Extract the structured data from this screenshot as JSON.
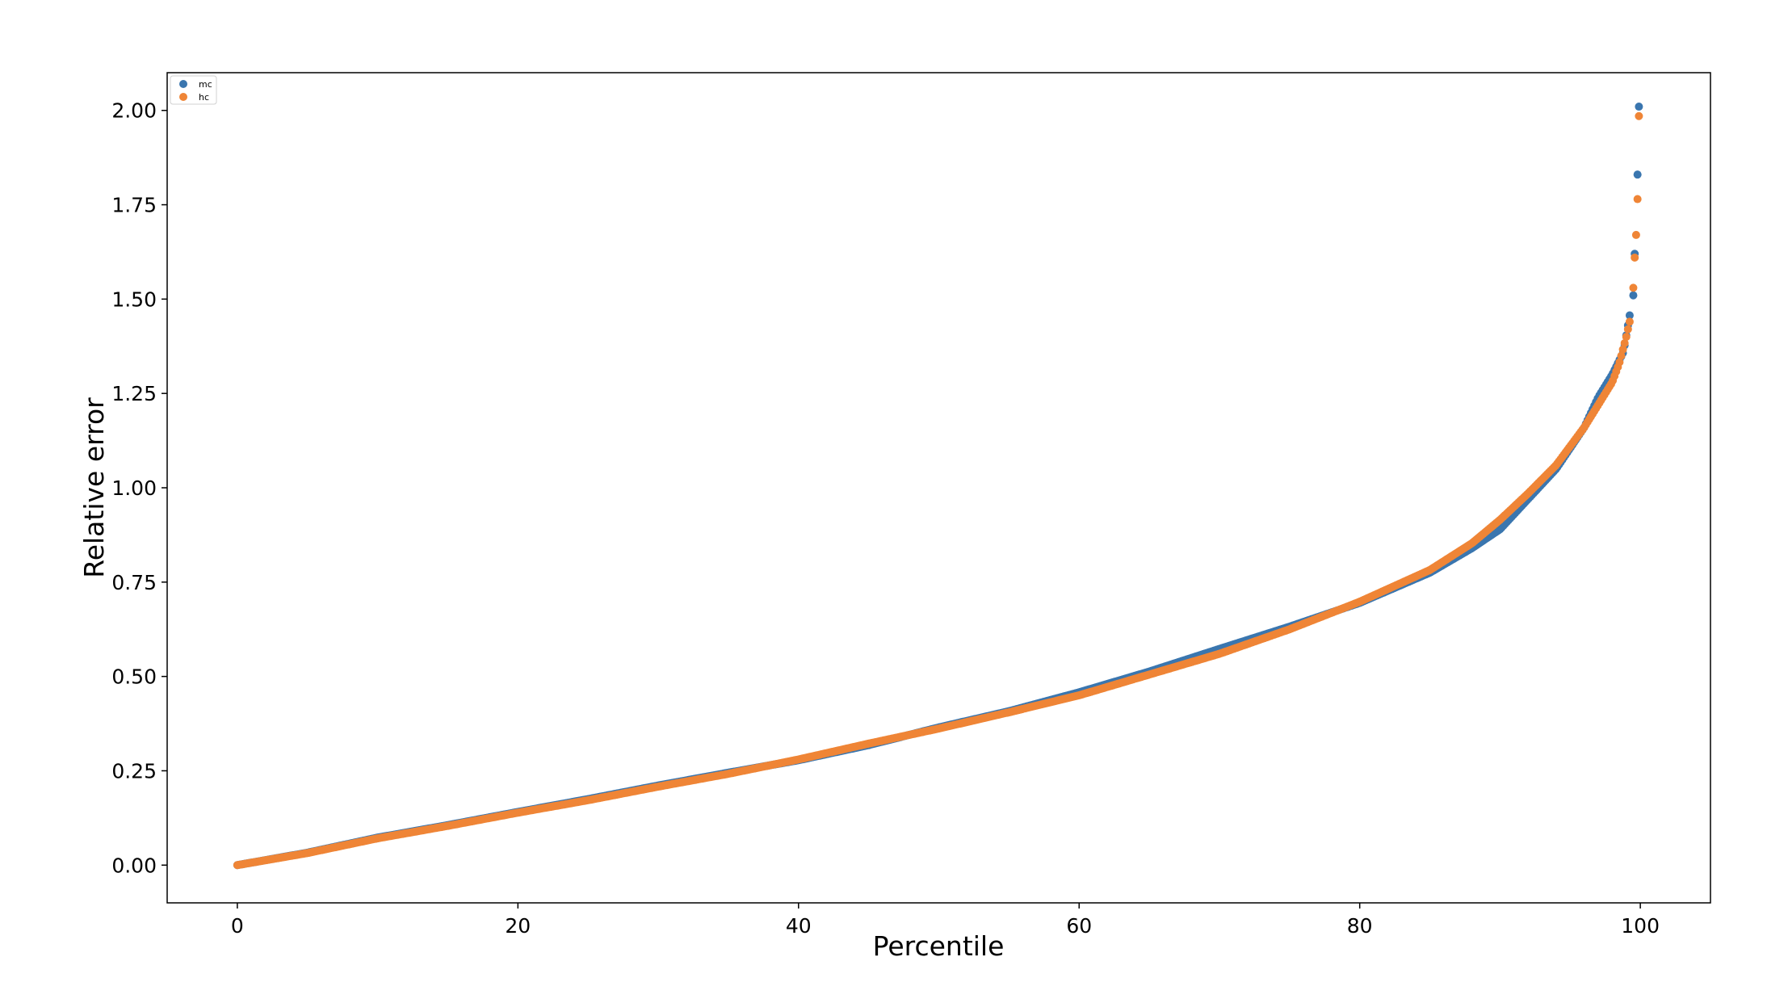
{
  "chart_data": {
    "type": "scatter",
    "title": "",
    "xlabel": "Percentile",
    "ylabel": "Relative error",
    "xlim": [
      -5,
      105
    ],
    "ylim": [
      -0.1,
      2.1
    ],
    "xticks": [
      0,
      20,
      40,
      60,
      80,
      100
    ],
    "xtick_labels": [
      "0",
      "20",
      "40",
      "60",
      "80",
      "100"
    ],
    "yticks": [
      0.0,
      0.25,
      0.5,
      0.75,
      1.0,
      1.25,
      1.5,
      1.75,
      2.0
    ],
    "ytick_labels": [
      "0.00",
      "0.25",
      "0.50",
      "0.75",
      "1.00",
      "1.25",
      "1.50",
      "1.75",
      "2.00"
    ],
    "grid": false,
    "legend_position": "top-left",
    "series": [
      {
        "name": "mc",
        "color": "#3a76af",
        "curve_x": [
          0,
          5,
          10,
          15,
          20,
          25,
          30,
          35,
          40,
          45,
          50,
          55,
          60,
          65,
          70,
          75,
          80,
          85,
          88,
          90,
          92,
          94,
          96,
          97,
          98,
          98.8,
          99.3
        ],
        "curve_y": [
          0.0,
          0.033,
          0.073,
          0.106,
          0.141,
          0.175,
          0.211,
          0.245,
          0.278,
          0.318,
          0.365,
          0.408,
          0.458,
          0.513,
          0.573,
          0.632,
          0.695,
          0.775,
          0.84,
          0.89,
          0.97,
          1.05,
          1.16,
          1.24,
          1.3,
          1.36,
          1.47
        ],
        "tail_x": [
          99.5,
          99.6,
          99.8,
          99.9
        ],
        "tail_y": [
          1.51,
          1.62,
          1.83,
          2.01
        ]
      },
      {
        "name": "hc",
        "color": "#ef8536",
        "curve_x": [
          0,
          5,
          10,
          15,
          20,
          25,
          30,
          35,
          40,
          45,
          50,
          55,
          60,
          65,
          70,
          75,
          80,
          85,
          88,
          90,
          92,
          94,
          96,
          97,
          98,
          98.5,
          99,
          99.3
        ],
        "curve_y": [
          0.0,
          0.032,
          0.071,
          0.104,
          0.139,
          0.172,
          0.208,
          0.242,
          0.28,
          0.322,
          0.362,
          0.405,
          0.45,
          0.505,
          0.56,
          0.625,
          0.698,
          0.782,
          0.853,
          0.915,
          0.985,
          1.06,
          1.16,
          1.22,
          1.28,
          1.33,
          1.4,
          1.45
        ],
        "tail_x": [
          99.5,
          99.6,
          99.7,
          99.8,
          99.9
        ],
        "tail_y": [
          1.53,
          1.61,
          1.67,
          1.765,
          1.985
        ]
      }
    ]
  }
}
